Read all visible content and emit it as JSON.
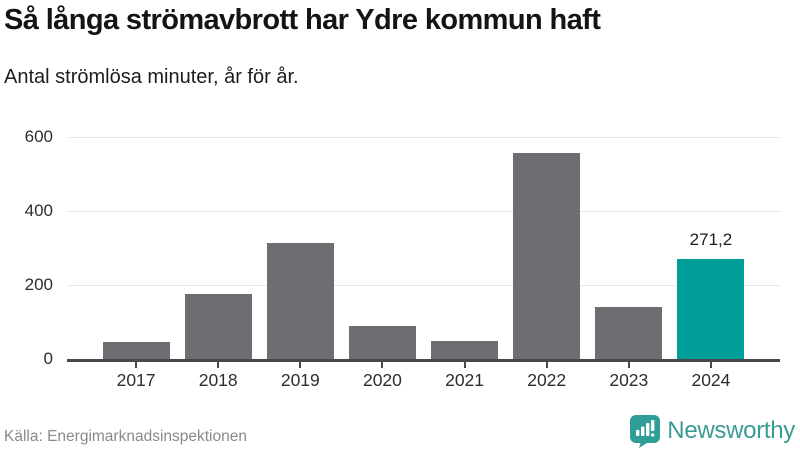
{
  "header": {
    "title": "Så långa strömavbrott har Ydre kommun haft",
    "subtitle": "Antal strömlösa minuter, år för år."
  },
  "chart_data": {
    "type": "bar",
    "title": "Så långa strömavbrott har Ydre kommun haft",
    "subtitle": "Antal strömlösa minuter, år för år.",
    "categories": [
      "2017",
      "2018",
      "2019",
      "2020",
      "2021",
      "2022",
      "2023",
      "2024"
    ],
    "values": [
      47,
      176,
      313,
      90,
      49,
      558,
      140,
      271.2
    ],
    "value_labels": [
      "",
      "",
      "",
      "",
      "",
      "",
      "",
      "271,2"
    ],
    "ylim": [
      0,
      600
    ],
    "yticks": [
      0,
      200,
      400,
      600
    ],
    "grid": "horizontal-only",
    "legend": "none",
    "highlight_index": 7,
    "colors": {
      "bar": "#6e6d72",
      "highlight": "#009e98",
      "gridline": "#e8e8e8",
      "axis": "#47474d",
      "tick_label": "#2e2e2e"
    }
  },
  "footer": {
    "source": "Källa: Energimarknadsinspektionen",
    "brand": "Newsworthy",
    "brand_color": "#3b9b95"
  }
}
